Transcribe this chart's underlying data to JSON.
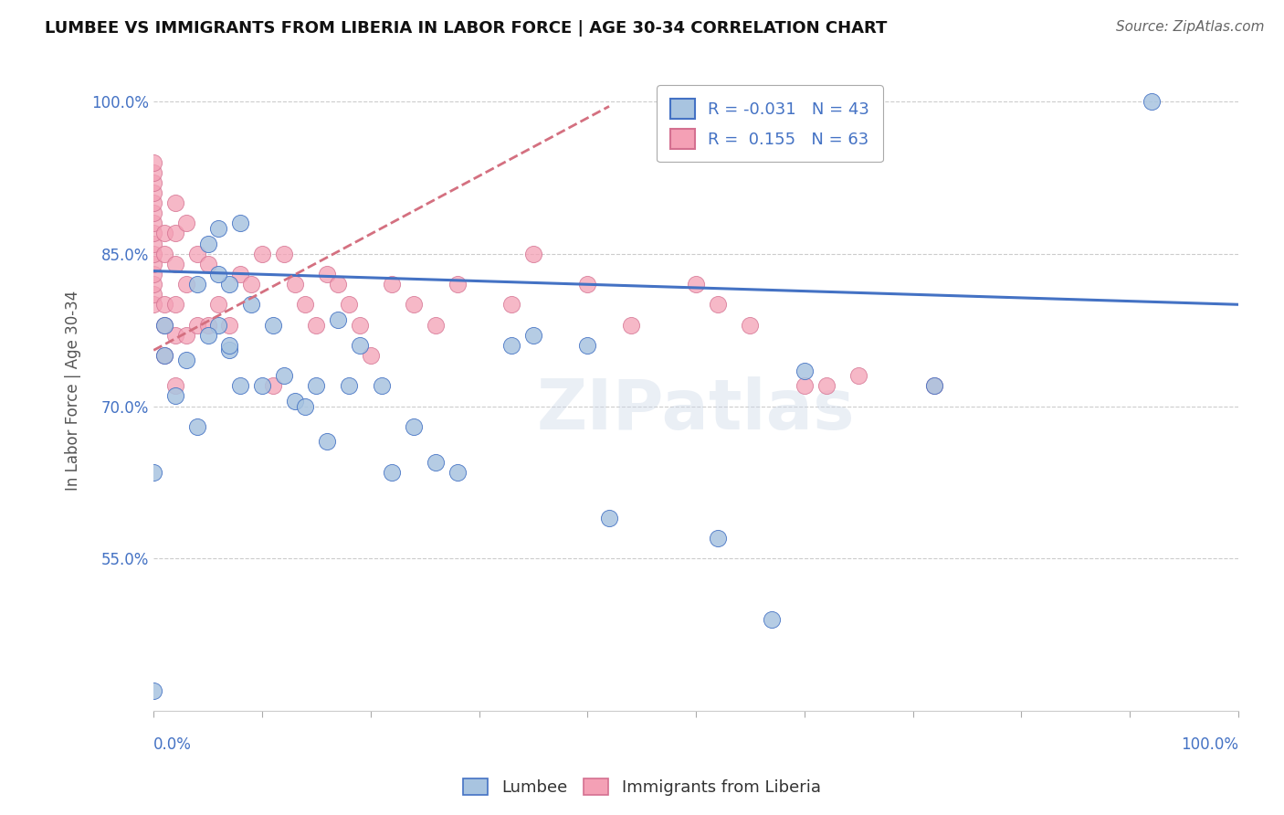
{
  "title": "LUMBEE VS IMMIGRANTS FROM LIBERIA IN LABOR FORCE | AGE 30-34 CORRELATION CHART",
  "source": "Source: ZipAtlas.com",
  "ylabel": "In Labor Force | Age 30-34",
  "xmin": 0.0,
  "xmax": 1.0,
  "ymin": 0.4,
  "ymax": 1.03,
  "legend_r_lumbee": "-0.031",
  "legend_n_lumbee": "43",
  "legend_r_liberia": "0.155",
  "legend_n_liberia": "63",
  "lumbee_color": "#a8c4e0",
  "liberia_color": "#f4a0b5",
  "lumbee_line_color": "#4472c4",
  "liberia_line_color": "#d47080",
  "watermark": "ZIPatlas",
  "lumbee_line_x": [
    0.0,
    1.0
  ],
  "lumbee_line_y": [
    0.833,
    0.8
  ],
  "liberia_line_x": [
    0.0,
    0.42
  ],
  "liberia_line_y": [
    0.755,
    0.995
  ],
  "lumbee_x": [
    0.0,
    0.0,
    0.01,
    0.01,
    0.02,
    0.03,
    0.04,
    0.04,
    0.05,
    0.06,
    0.06,
    0.07,
    0.07,
    0.08,
    0.09,
    0.1,
    0.11,
    0.12,
    0.13,
    0.14,
    0.15,
    0.16,
    0.17,
    0.18,
    0.19,
    0.21,
    0.22,
    0.24,
    0.26,
    0.28,
    0.33,
    0.35,
    0.4,
    0.42,
    0.52,
    0.57,
    0.6,
    0.72,
    0.92,
    0.05,
    0.06,
    0.07,
    0.08
  ],
  "lumbee_y": [
    0.635,
    0.42,
    0.75,
    0.78,
    0.71,
    0.745,
    0.68,
    0.82,
    0.86,
    0.875,
    0.78,
    0.82,
    0.755,
    0.88,
    0.8,
    0.72,
    0.78,
    0.73,
    0.705,
    0.7,
    0.72,
    0.665,
    0.785,
    0.72,
    0.76,
    0.72,
    0.635,
    0.68,
    0.645,
    0.635,
    0.76,
    0.77,
    0.76,
    0.59,
    0.57,
    0.49,
    0.735,
    0.72,
    1.0,
    0.77,
    0.83,
    0.76,
    0.72
  ],
  "liberia_x": [
    0.0,
    0.0,
    0.0,
    0.0,
    0.0,
    0.0,
    0.0,
    0.0,
    0.0,
    0.0,
    0.0,
    0.0,
    0.0,
    0.0,
    0.0,
    0.01,
    0.01,
    0.01,
    0.01,
    0.01,
    0.02,
    0.02,
    0.02,
    0.02,
    0.02,
    0.02,
    0.03,
    0.03,
    0.03,
    0.04,
    0.04,
    0.05,
    0.05,
    0.06,
    0.07,
    0.08,
    0.09,
    0.1,
    0.11,
    0.12,
    0.13,
    0.14,
    0.15,
    0.16,
    0.17,
    0.18,
    0.19,
    0.2,
    0.22,
    0.24,
    0.26,
    0.28,
    0.33,
    0.35,
    0.4,
    0.44,
    0.5,
    0.52,
    0.55,
    0.6,
    0.62,
    0.65,
    0.72
  ],
  "liberia_y": [
    0.8,
    0.81,
    0.82,
    0.83,
    0.84,
    0.85,
    0.86,
    0.87,
    0.88,
    0.89,
    0.9,
    0.91,
    0.92,
    0.93,
    0.94,
    0.75,
    0.78,
    0.8,
    0.85,
    0.87,
    0.72,
    0.77,
    0.8,
    0.84,
    0.87,
    0.9,
    0.77,
    0.82,
    0.88,
    0.78,
    0.85,
    0.78,
    0.84,
    0.8,
    0.78,
    0.83,
    0.82,
    0.85,
    0.72,
    0.85,
    0.82,
    0.8,
    0.78,
    0.83,
    0.82,
    0.8,
    0.78,
    0.75,
    0.82,
    0.8,
    0.78,
    0.82,
    0.8,
    0.85,
    0.82,
    0.78,
    0.82,
    0.8,
    0.78,
    0.72,
    0.72,
    0.73,
    0.72
  ]
}
